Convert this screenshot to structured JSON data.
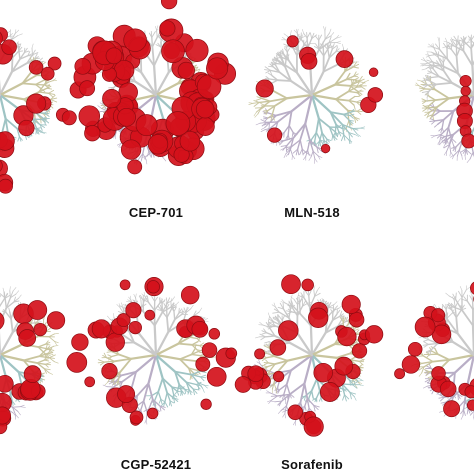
{
  "panels": [
    {
      "label": "",
      "visible_portion": "right-edge",
      "dots": "dense"
    },
    {
      "label": "CEP-701",
      "dots": "very-dense"
    },
    {
      "label": "MLN-518",
      "dots": "sparse"
    },
    {
      "label": "",
      "visible_portion": "left-edge",
      "dots": "sparse-column"
    },
    {
      "label": "",
      "visible_portion": "right-edge",
      "dots": "dense"
    },
    {
      "label": "CGP-52421",
      "dots": "medium"
    },
    {
      "label": "Sorafenib",
      "dots": "medium"
    },
    {
      "label": "",
      "visible_portion": "left-edge",
      "dots": "medium"
    }
  ],
  "colors": {
    "hit": "#d4111b",
    "hit_stroke": "#8e0b11",
    "branch_gray": "#c9c9c9",
    "branch_purple": "#b9aec6",
    "branch_olive": "#c9c59e",
    "branch_teal": "#9fc4c4",
    "label": "#111111"
  }
}
